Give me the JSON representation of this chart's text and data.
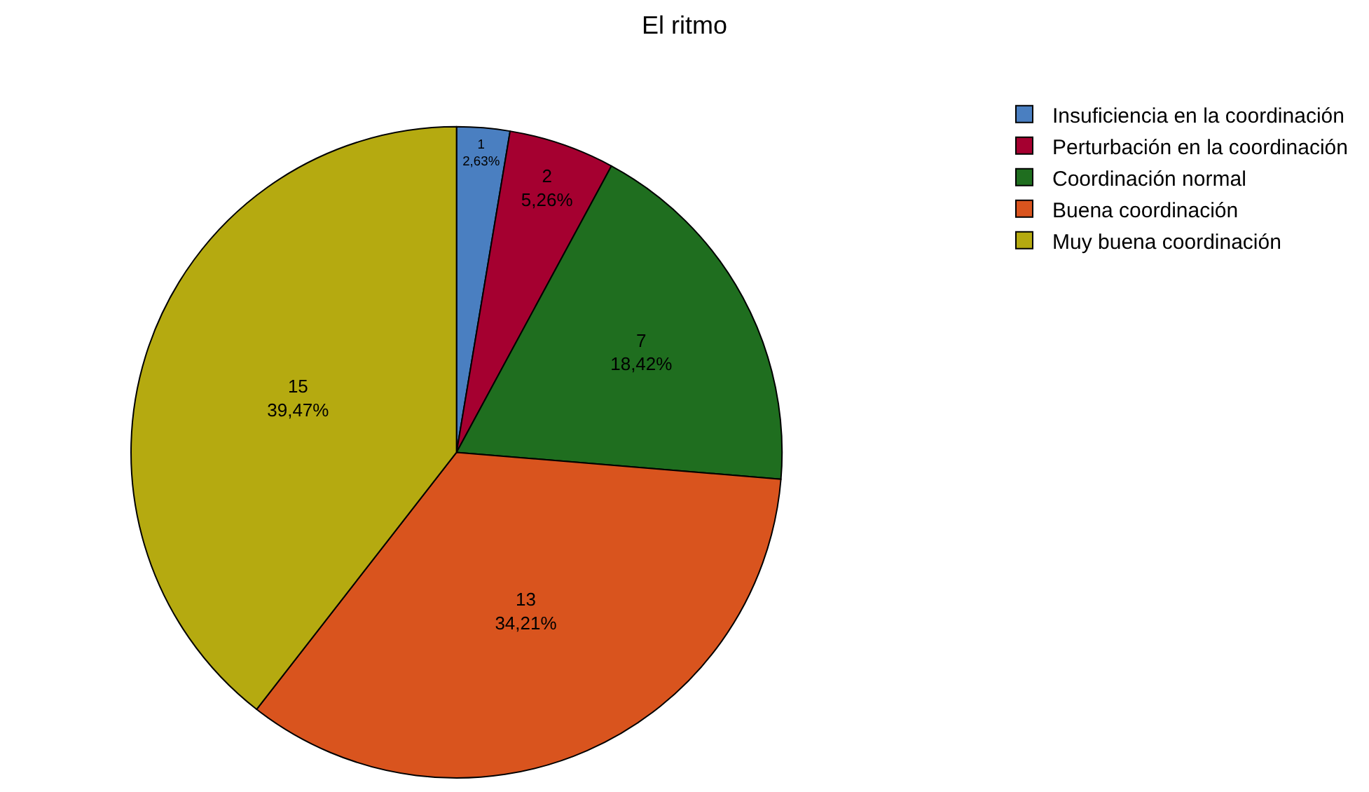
{
  "chart_data": {
    "type": "pie",
    "title": "El ritmo",
    "categories": [
      "Insuficiencia en la coordinación",
      "Perturbación en la coordinación",
      "Coordinación normal",
      "Buena coordinación",
      "Muy buena coordinación"
    ],
    "values": [
      1,
      2,
      7,
      13,
      15
    ],
    "colors": [
      "#4a7fc1",
      "#a50030",
      "#1f6e1f",
      "#d9541e",
      "#b5aa10"
    ],
    "value_labels": [
      "1\n2,63%",
      "2\n5,26%",
      "7\n18,42%",
      "13\n34,21%",
      "15\n39,47%"
    ],
    "legend": "top right"
  }
}
